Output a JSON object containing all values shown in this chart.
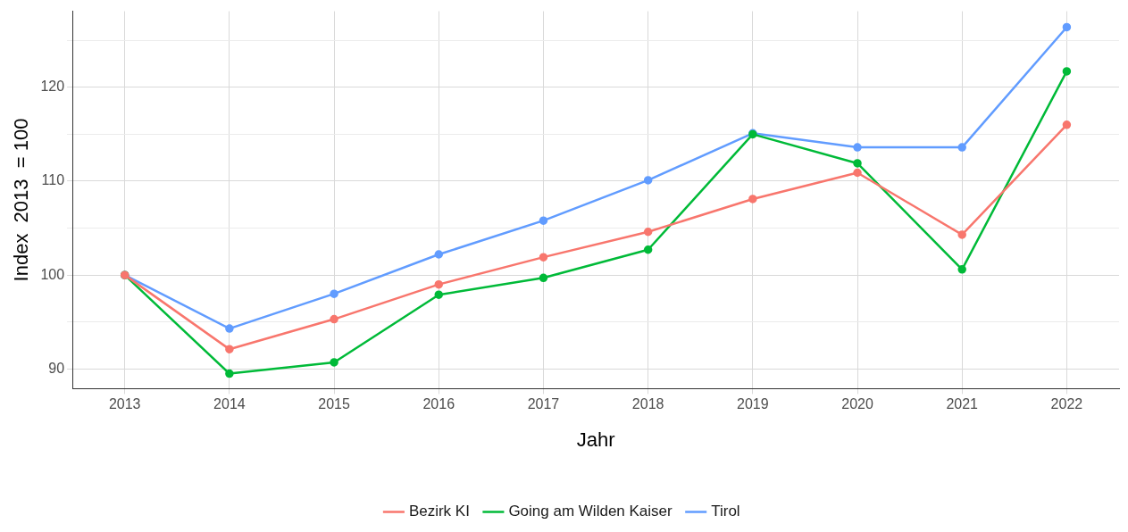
{
  "chart_data": {
    "type": "line",
    "xlabel": "Jahr",
    "ylabel": "Index  2013  = 100",
    "categories": [
      "2013",
      "2014",
      "2015",
      "2016",
      "2017",
      "2018",
      "2019",
      "2020",
      "2021",
      "2022"
    ],
    "series": [
      {
        "name": "Bezirk KI",
        "color": "#f8766d",
        "values": [
          100,
          92.1,
          95.3,
          99.0,
          101.9,
          104.6,
          108.1,
          110.9,
          104.3,
          116.0
        ]
      },
      {
        "name": "Going am Wilden Kaiser",
        "color": "#00ba38",
        "values": [
          100,
          89.5,
          90.7,
          97.9,
          99.7,
          102.7,
          115.0,
          111.9,
          100.6,
          121.7
        ]
      },
      {
        "name": "Tirol",
        "color": "#619cff",
        "values": [
          100,
          94.3,
          98.0,
          102.2,
          105.8,
          110.1,
          115.1,
          113.6,
          113.6,
          126.4
        ]
      }
    ],
    "ylim": [
      87.9,
      128.1
    ],
    "yticks": [
      90,
      {
        "value": 95,
        "label": null
      },
      100,
      {
        "value": 105,
        "label": null
      },
      110,
      {
        "value": 115,
        "label": null
      },
      120,
      {
        "value": 125,
        "label": null
      }
    ],
    "grid": true,
    "legend": "bottom",
    "marker": "circle",
    "line_style": "solid"
  }
}
